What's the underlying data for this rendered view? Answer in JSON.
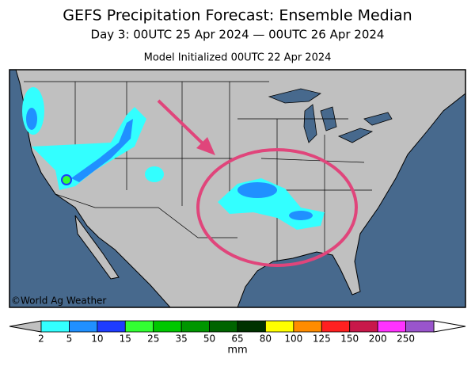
{
  "header": {
    "title": "GEFS Precipitation Forecast: Ensemble Median",
    "subtitle": "Day 3: 00UTC 25 Apr 2024 — 00UTC 26 Apr 2024",
    "initialized": "Model Initialized 00UTC 22 Apr 2024"
  },
  "map": {
    "credit": "©World Ag Weather"
  },
  "colorbar": {
    "unit": "mm",
    "ticks": [
      2,
      5,
      10,
      15,
      25,
      35,
      50,
      65,
      80,
      100,
      125,
      150,
      200,
      250
    ],
    "colors": [
      "#33ffff",
      "#2090ff",
      "#1e3cff",
      "#33ff33",
      "#00c800",
      "#009600",
      "#006400",
      "#003200",
      "#ffff00",
      "#ff8c00",
      "#ff2020",
      "#c8184a",
      "#ff33ff",
      "#9955cc"
    ]
  }
}
